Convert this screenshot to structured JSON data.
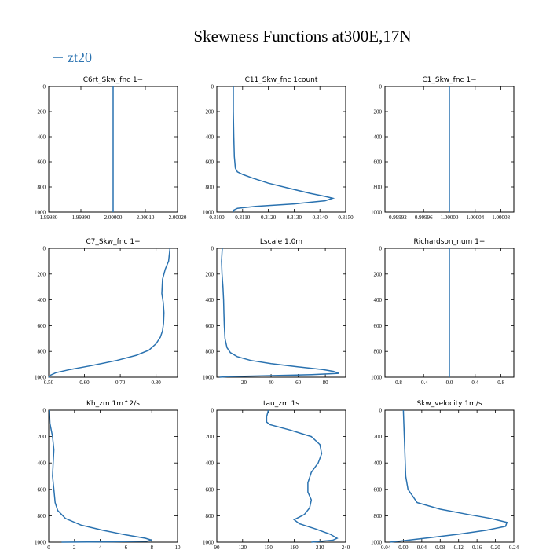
{
  "figure": {
    "title": "Skewness Functions at300E,17N",
    "legend": {
      "label": "zt20",
      "color": "#2a72b0"
    }
  },
  "chart_data": [
    {
      "type": "line",
      "title": "C6rt_Skw_fnc   1−",
      "xlim": [
        1.9998,
        2.0002
      ],
      "ylim": [
        1000,
        0
      ],
      "xticks": [
        1.9998,
        1.9999,
        2.0,
        2.0001,
        2.0002
      ],
      "xtick_labels": [
        "1.99980",
        "1.99990",
        "2.00000",
        "2.00010",
        "2.00020"
      ],
      "yticks": [
        0,
        200,
        400,
        600,
        800,
        1000
      ],
      "ytick_labels": [
        "0",
        "200",
        "400",
        "600",
        "800",
        "1000"
      ],
      "series": [
        {
          "color": "#2a72b0",
          "x": [
            2.0,
            2.0
          ],
          "y": [
            0,
            1000
          ]
        }
      ]
    },
    {
      "type": "line",
      "title": "C11_Skw_fnc   1count",
      "xlim": [
        0.31,
        0.315
      ],
      "ylim": [
        1000,
        0
      ],
      "xticks": [
        0.31,
        0.311,
        0.312,
        0.313,
        0.314,
        0.315
      ],
      "xtick_labels": [
        "0.3100",
        "0.3110",
        "0.3120",
        "0.3130",
        "0.3140",
        "0.3150"
      ],
      "yticks": [
        0,
        200,
        400,
        600,
        800,
        1000
      ],
      "ytick_labels": [
        "0",
        "200",
        "400",
        "600",
        "800",
        "1000"
      ],
      "series": [
        {
          "color": "#2a72b0",
          "x": [
            0.31064,
            0.31064,
            0.31066,
            0.31068,
            0.31072,
            0.3108,
            0.311,
            0.3114,
            0.312,
            0.3128,
            0.3136,
            0.3142,
            0.3145,
            0.3142,
            0.313,
            0.3115,
            0.3108,
            0.31065,
            0.31064
          ],
          "y": [
            0,
            200,
            400,
            560,
            650,
            680,
            700,
            730,
            770,
            810,
            850,
            875,
            890,
            910,
            935,
            955,
            970,
            985,
            1000
          ]
        }
      ]
    },
    {
      "type": "line",
      "title": "C1_Skw_fnc   1−",
      "xlim": [
        0.9999,
        1.0001
      ],
      "ylim": [
        1000,
        0
      ],
      "xticks": [
        0.99992,
        0.99996,
        1.0,
        1.00004,
        1.00008
      ],
      "xtick_labels": [
        "0.99992",
        "0.99996",
        "1.00000",
        "1.00004",
        "1.00008"
      ],
      "yticks": [
        0,
        200,
        400,
        600,
        800,
        1000
      ],
      "ytick_labels": [
        "0",
        "200",
        "400",
        "600",
        "800",
        "1000"
      ],
      "series": [
        {
          "color": "#2a72b0",
          "x": [
            1.0,
            1.0
          ],
          "y": [
            0,
            1000
          ]
        }
      ]
    },
    {
      "type": "line",
      "title": "C7_Skw_fnc   1−",
      "xlim": [
        0.5,
        0.86
      ],
      "ylim": [
        1000,
        0
      ],
      "xticks": [
        0.5,
        0.6,
        0.7,
        0.8
      ],
      "xtick_labels": [
        "0.50",
        "0.60",
        "0.70",
        "0.80"
      ],
      "yticks": [
        0,
        200,
        400,
        600,
        800,
        1000
      ],
      "ytick_labels": [
        "0",
        "200",
        "400",
        "600",
        "800",
        "1000"
      ],
      "series": [
        {
          "color": "#2a72b0",
          "x": [
            0.839,
            0.835,
            0.826,
            0.818,
            0.816,
            0.82,
            0.822,
            0.821,
            0.818,
            0.812,
            0.8,
            0.78,
            0.745,
            0.69,
            0.62,
            0.56,
            0.52,
            0.505,
            0.5
          ],
          "y": [
            0,
            100,
            160,
            240,
            350,
            420,
            500,
            580,
            640,
            690,
            740,
            790,
            830,
            870,
            910,
            940,
            965,
            985,
            1000
          ]
        }
      ]
    },
    {
      "type": "line",
      "title": "Lscale   1.0m",
      "xlim": [
        0,
        95
      ],
      "ylim": [
        1000,
        0
      ],
      "xticks": [
        20,
        40,
        60,
        80
      ],
      "xtick_labels": [
        "20",
        "40",
        "60",
        "80"
      ],
      "yticks": [
        0,
        200,
        400,
        600,
        800,
        1000
      ],
      "ytick_labels": [
        "0",
        "200",
        "400",
        "600",
        "800",
        "1000"
      ],
      "series": [
        {
          "color": "#2a72b0",
          "x": [
            4,
            3.5,
            3.8,
            4.5,
            5,
            5.2,
            5.5,
            6,
            7.5,
            10,
            15,
            25,
            40,
            60,
            78,
            86,
            90,
            70,
            30,
            8,
            2
          ],
          "y": [
            0,
            100,
            200,
            300,
            400,
            500,
            600,
            700,
            770,
            810,
            840,
            870,
            895,
            920,
            940,
            955,
            970,
            980,
            990,
            995,
            1000
          ]
        }
      ]
    },
    {
      "type": "line",
      "title": "Richardson_num   1−",
      "xlim": [
        -1.0,
        1.0
      ],
      "ylim": [
        1000,
        0
      ],
      "xticks": [
        -0.8,
        -0.4,
        0.0,
        0.4,
        0.8
      ],
      "xtick_labels": [
        "-0.8",
        "-0.4",
        "0.0",
        "0.4",
        "0.8"
      ],
      "yticks": [
        0,
        200,
        400,
        600,
        800,
        1000
      ],
      "ytick_labels": [
        "0",
        "200",
        "400",
        "600",
        "800",
        "1000"
      ],
      "series": [
        {
          "color": "#2a72b0",
          "x": [
            0.0,
            0.0
          ],
          "y": [
            0,
            1000
          ]
        }
      ]
    },
    {
      "type": "line",
      "title": "Kh_zm   1m^2/s",
      "xlim": [
        0,
        10
      ],
      "ylim": [
        1000,
        0
      ],
      "xticks": [
        0,
        2,
        4,
        6,
        8,
        10
      ],
      "xtick_labels": [
        "0",
        "2",
        "4",
        "6",
        "8",
        "10"
      ],
      "yticks": [
        0,
        200,
        400,
        600,
        800,
        1000
      ],
      "ytick_labels": [
        "0",
        "200",
        "400",
        "600",
        "800",
        "1000"
      ],
      "series": [
        {
          "color": "#2a72b0",
          "x": [
            0.05,
            0.1,
            0.3,
            0.4,
            0.35,
            0.3,
            0.4,
            0.5,
            0.7,
            1.3,
            2.5,
            4.2,
            6.0,
            7.5,
            8.0,
            7.6,
            5.0,
            1.0
          ],
          "y": [
            0,
            100,
            200,
            300,
            400,
            500,
            600,
            700,
            760,
            820,
            870,
            910,
            945,
            970,
            985,
            993,
            997,
            1000
          ]
        }
      ]
    },
    {
      "type": "line",
      "title": "tau_zm   1s",
      "xlim": [
        90,
        240
      ],
      "ylim": [
        1000,
        0
      ],
      "xticks": [
        90,
        120,
        150,
        180,
        210,
        240
      ],
      "xtick_labels": [
        "90",
        "120",
        "150",
        "180",
        "210",
        "240"
      ],
      "yticks": [
        0,
        200,
        400,
        600,
        800,
        1000
      ],
      "ytick_labels": [
        "0",
        "200",
        "400",
        "600",
        "800",
        "1000"
      ],
      "series": [
        {
          "color": "#2a72b0",
          "x": [
            150,
            148,
            148,
            152,
            175,
            200,
            210,
            212,
            208,
            200,
            196,
            196,
            200,
            198,
            192,
            186,
            180,
            186,
            205,
            222,
            230,
            225,
            200
          ],
          "y": [
            0,
            50,
            90,
            110,
            150,
            200,
            260,
            330,
            400,
            470,
            550,
            620,
            680,
            740,
            790,
            810,
            830,
            860,
            900,
            940,
            970,
            985,
            1000
          ]
        }
      ]
    },
    {
      "type": "line",
      "title": "Skw_velocity   1m/s",
      "xlim": [
        -0.04,
        0.24
      ],
      "ylim": [
        1000,
        0
      ],
      "xticks": [
        -0.04,
        0.0,
        0.04,
        0.08,
        0.12,
        0.16,
        0.2,
        0.24
      ],
      "xtick_labels": [
        "-0.04",
        "0.00",
        "0.04",
        "0.08",
        "0.12",
        "0.16",
        "0.20",
        "0.24"
      ],
      "yticks": [
        0,
        200,
        400,
        600,
        800,
        1000
      ],
      "ytick_labels": [
        "0",
        "200",
        "400",
        "600",
        "800",
        "1000"
      ],
      "series": [
        {
          "color": "#2a72b0",
          "x": [
            0.0,
            0.001,
            0.002,
            0.003,
            0.004,
            0.005,
            0.01,
            0.03,
            0.08,
            0.14,
            0.19,
            0.225,
            0.222,
            0.18,
            0.12,
            0.06,
            0.01,
            -0.03
          ],
          "y": [
            0,
            100,
            200,
            300,
            400,
            500,
            600,
            700,
            750,
            790,
            820,
            850,
            880,
            910,
            940,
            965,
            985,
            1000
          ]
        }
      ]
    }
  ]
}
